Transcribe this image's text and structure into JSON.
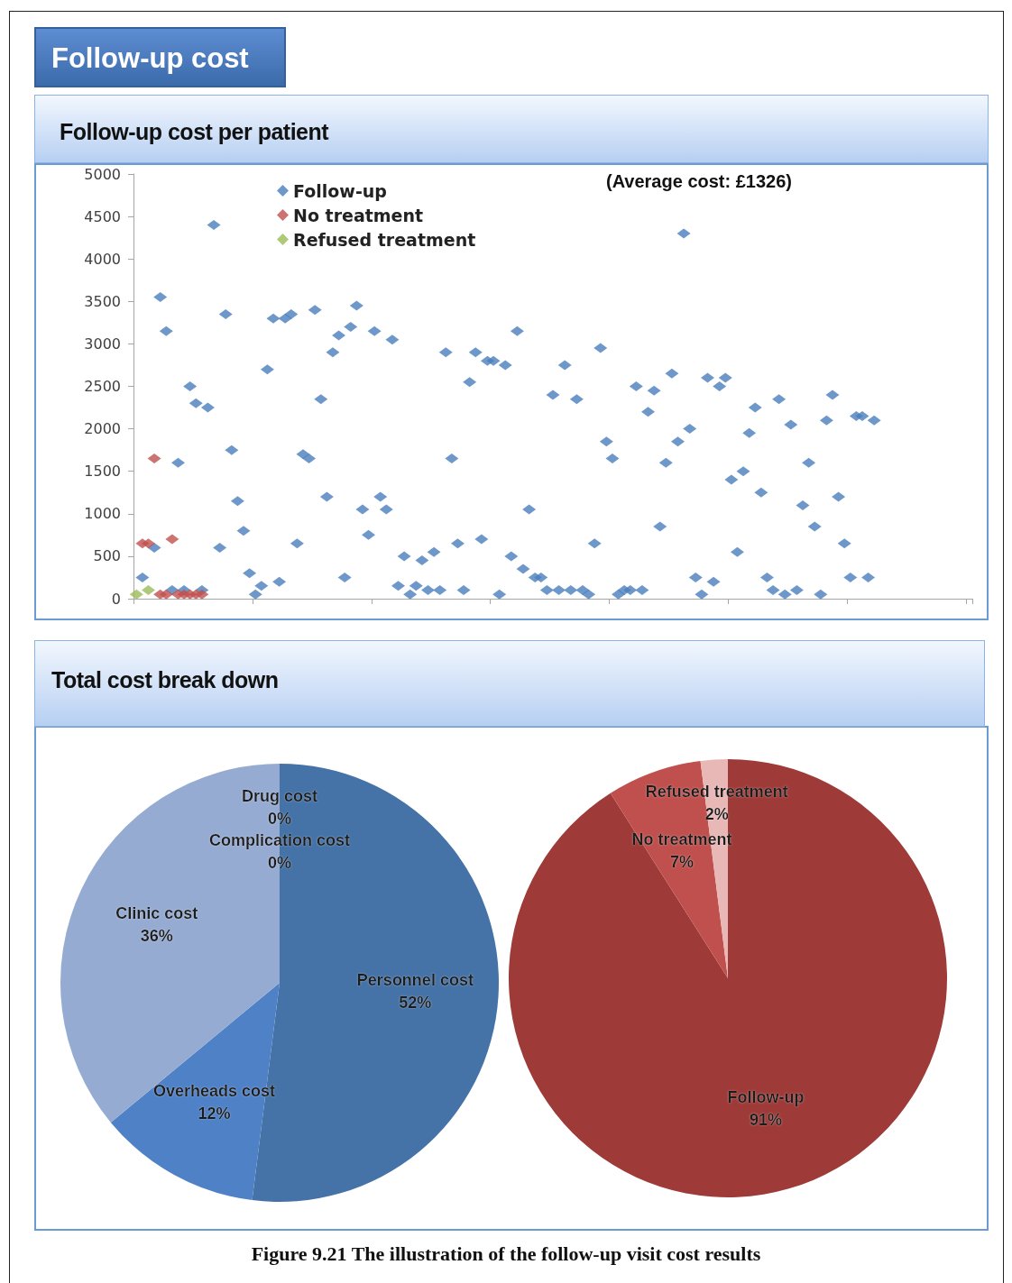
{
  "chart_data": [
    {
      "type": "scatter",
      "title": "Follow-up cost",
      "subtitle": "Follow-up cost per patient",
      "annotations": [
        "(Average cost: £1326)"
      ],
      "categories": [
        null,
        null,
        null,
        null,
        null,
        null,
        null,
        null,
        null,
        null,
        null,
        null,
        null,
        null,
        null,
        null,
        null,
        null,
        null,
        null,
        null,
        null,
        null,
        null,
        null,
        null,
        null,
        null,
        null,
        null,
        null,
        null,
        null,
        null,
        null,
        null,
        null,
        null,
        null,
        null,
        null,
        null,
        null,
        null,
        null,
        null,
        null,
        null,
        null,
        null,
        null,
        null,
        null,
        null,
        null,
        null,
        null,
        null,
        null,
        null,
        null,
        null,
        null,
        null,
        null,
        null,
        null,
        null,
        null,
        null,
        null,
        null,
        null,
        null,
        null,
        null,
        null,
        null,
        null,
        null,
        null,
        null,
        null,
        null,
        null,
        null,
        null,
        null,
        null,
        null,
        null,
        null,
        null,
        null,
        null,
        null,
        null,
        null,
        null,
        null,
        null,
        null,
        null,
        null,
        null,
        null,
        null,
        null,
        null,
        null,
        null,
        null,
        null,
        null,
        null,
        null,
        null,
        null,
        null,
        null,
        null,
        null,
        null,
        null,
        null,
        null,
        null,
        null,
        null,
        null,
        null,
        null,
        null,
        null,
        null,
        null,
        null,
        null,
        null,
        null,
        null
      ],
      "series": [
        {
          "name": "Follow-up",
          "color": "#4a7ebb",
          "values": [
            null,
            250,
            null,
            600,
            3550,
            3150,
            100,
            1600,
            100,
            2500,
            2300,
            100,
            2250,
            4400,
            600,
            3350,
            1750,
            1150,
            800,
            300,
            50,
            150,
            2700,
            3300,
            200,
            3300,
            3350,
            650,
            1700,
            1650,
            3400,
            2350,
            1200,
            2900,
            3100,
            250,
            3200,
            3450,
            1050,
            750,
            3150,
            1200,
            1050,
            3050,
            150,
            500,
            50,
            150,
            450,
            100,
            550,
            100,
            2900,
            1650,
            650,
            100,
            2550,
            2900,
            700,
            2800,
            2800,
            50,
            2750,
            500,
            3150,
            350,
            1050,
            250,
            250,
            100,
            2400,
            100,
            2750,
            100,
            2350,
            100,
            50,
            650,
            2950,
            1850,
            1650,
            50,
            100,
            100,
            2500,
            100,
            2200,
            2450,
            850,
            1600,
            2650,
            1850,
            4300,
            2000,
            250,
            50,
            2600,
            200,
            2500,
            2600,
            1400,
            550,
            1500,
            1950,
            2250,
            1250,
            250,
            100,
            2350,
            50,
            2050,
            100,
            1100,
            1600,
            850,
            50,
            2100,
            2400,
            1200,
            650,
            250,
            2150,
            2150,
            250,
            2100,
            null,
            null,
            null,
            null,
            null,
            null,
            null,
            null,
            null,
            null,
            null,
            null,
            null,
            null,
            null,
            null
          ]
        },
        {
          "name": "No treatment",
          "color": "#c0504d",
          "values": [
            null,
            650,
            650,
            1650,
            50,
            50,
            700,
            50,
            50,
            50,
            50,
            50,
            null,
            null,
            null,
            null,
            null,
            null,
            null,
            null,
            null,
            null,
            null,
            null,
            null,
            null,
            null,
            null,
            null,
            null,
            null,
            null,
            null,
            null,
            null,
            null,
            null,
            null,
            null,
            null,
            null,
            null,
            null,
            null,
            null,
            null,
            null,
            null,
            null,
            null,
            null,
            null,
            null,
            null,
            null,
            null,
            null,
            null,
            null,
            null,
            null,
            null,
            null,
            null,
            null,
            null,
            null,
            null,
            null,
            null,
            null,
            null,
            null,
            null,
            null,
            null,
            null,
            null,
            null,
            null,
            null,
            null,
            null,
            null,
            null,
            null,
            null,
            null,
            null,
            null,
            null,
            null,
            null,
            null,
            null,
            null,
            null,
            null,
            null,
            null,
            null,
            null,
            null,
            null,
            null,
            null,
            null,
            null,
            null,
            null,
            null,
            null,
            null,
            null,
            null,
            null,
            null,
            null,
            null,
            null,
            null,
            null,
            null,
            null,
            null,
            null,
            null,
            null,
            null,
            null,
            null,
            null,
            null,
            null,
            null,
            null,
            null,
            null,
            null,
            null,
            null
          ]
        },
        {
          "name": "Refused treatment",
          "color": "#9bbb59",
          "values": [
            50,
            null,
            100,
            null,
            null,
            null,
            null,
            null,
            null,
            null,
            null,
            null,
            null,
            null,
            null,
            null,
            null,
            null,
            null,
            null,
            null,
            null,
            null,
            null,
            null,
            null,
            null,
            null,
            null,
            null,
            null,
            null,
            null,
            null,
            null,
            null,
            null,
            null,
            null,
            null,
            null,
            null,
            null,
            null,
            null,
            null,
            null,
            null,
            null,
            null,
            null,
            null,
            null,
            null,
            null,
            null,
            null,
            null,
            null,
            null,
            null,
            null,
            null,
            null,
            null,
            null,
            null,
            null,
            null,
            null,
            null,
            null,
            null,
            null,
            null,
            null,
            null,
            null,
            null,
            null,
            null,
            null,
            null,
            null,
            null,
            null,
            null,
            null,
            null,
            null,
            null,
            null,
            null,
            null,
            null,
            null,
            null,
            null,
            null,
            null,
            null,
            null,
            null,
            null,
            null,
            null,
            null,
            null,
            null,
            null,
            null,
            null,
            null,
            null,
            null,
            null,
            null,
            null,
            null,
            null,
            null,
            null,
            null,
            null,
            null,
            null,
            null,
            null,
            null,
            null,
            null,
            null,
            null,
            null,
            null,
            null,
            null,
            null,
            null,
            null,
            null
          ]
        }
      ],
      "ylim": [
        0,
        5000
      ],
      "yticks": [
        0,
        500,
        1000,
        1500,
        2000,
        2500,
        3000,
        3500,
        4000,
        4500,
        5000
      ],
      "grid": false,
      "legend": "top left",
      "marker": "diamond",
      "tick_labels": "y"
    },
    {
      "type": "pie",
      "title": "Total cost break down",
      "categories": [
        "Drug cost",
        "Complication cost",
        "Personnel cost",
        "Overheads cost",
        "Clinic cost"
      ],
      "values": [
        0,
        0,
        52,
        12,
        36
      ],
      "value_labels": [
        "0%",
        "0%",
        "52%",
        "12%",
        "36%"
      ],
      "colors": [
        "#4f81bd",
        "#3b64a0",
        "#4572a7",
        "#4f81c7",
        "#95abd2"
      ]
    },
    {
      "type": "pie",
      "annotations": [
        "Figure 9.21 The illustration of the follow-up visit cost results"
      ],
      "categories": [
        "Follow-up",
        "No treatment",
        "Refused treatment"
      ],
      "values": [
        91,
        7,
        2
      ],
      "value_labels": [
        "91%",
        "7%",
        "2%"
      ],
      "colors": [
        "#9e3b39",
        "#c0504d",
        "#e8b8b7"
      ]
    }
  ]
}
